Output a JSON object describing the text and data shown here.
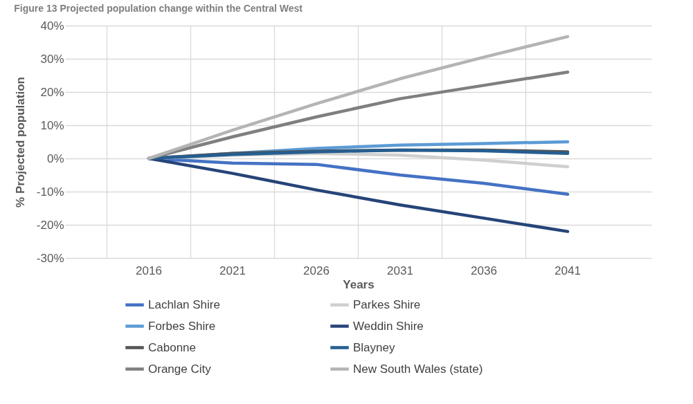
{
  "chart_data": {
    "type": "line",
    "title": "Figure 13 Projected population change within the Central West",
    "xlabel": "Years",
    "ylabel": "% Projected population",
    "categories": [
      "2016",
      "2021",
      "2026",
      "2031",
      "2036",
      "2041"
    ],
    "series": [
      {
        "name": "Lachlan Shire",
        "color": "#4472c4",
        "values": [
          0,
          -1.4,
          -1.8,
          -5,
          -7.5,
          -10.8
        ]
      },
      {
        "name": "Parkes Shire",
        "color": "#cfcfcf",
        "values": [
          0,
          1,
          1.5,
          1,
          -0.5,
          -2.5
        ]
      },
      {
        "name": "Forbes Shire",
        "color": "#5b9bd5",
        "values": [
          0,
          1.5,
          3,
          4,
          4.5,
          5
        ]
      },
      {
        "name": "Weddin Shire",
        "color": "#264478",
        "values": [
          0,
          -4.5,
          -9.5,
          -14,
          -18,
          -22
        ]
      },
      {
        "name": "Cabonne",
        "color": "#555555",
        "values": [
          0,
          1.5,
          2.2,
          2.5,
          2.5,
          2
        ]
      },
      {
        "name": "Blayney",
        "color": "#255e91",
        "values": [
          0,
          1.2,
          2,
          2.5,
          2.3,
          1.5
        ]
      },
      {
        "name": "Orange City",
        "color": "#7f7f7f",
        "values": [
          0,
          6.5,
          12.5,
          18,
          22,
          26
        ]
      },
      {
        "name": "New South Wales (state)",
        "color": "#b4b4b4",
        "values": [
          0,
          8.5,
          16.5,
          24,
          30.5,
          36.7
        ]
      }
    ],
    "ylim": [
      -30,
      40
    ],
    "yticks": [
      {
        "value": -30,
        "label": "-30%"
      },
      {
        "value": -20,
        "label": "-20%"
      },
      {
        "value": -10,
        "label": "-10%"
      },
      {
        "value": 0,
        "label": "0%"
      },
      {
        "value": 10,
        "label": "10%"
      },
      {
        "value": 20,
        "label": "20%"
      },
      {
        "value": 30,
        "label": "30%"
      },
      {
        "value": 40,
        "label": "40%"
      }
    ],
    "grid": true,
    "legend": "bottom",
    "line_style": "solid"
  }
}
